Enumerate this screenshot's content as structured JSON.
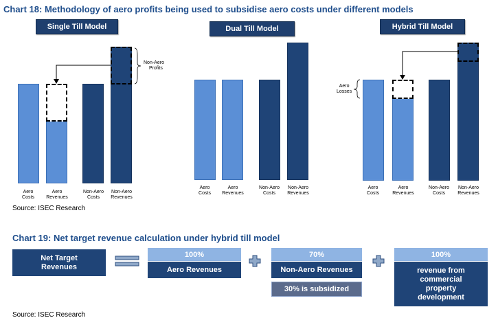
{
  "chart18": {
    "title": "Chart 18: Methodology of aero profits being used to subsidise aero costs under different models",
    "models": [
      {
        "name": "Single Till Model",
        "bars": [
          {
            "label_line1": "Aero",
            "label_line2": "Costs",
            "style": "light"
          },
          {
            "label_line1": "Aero",
            "label_line2": "Revenues",
            "style": "light"
          },
          {
            "label_line1": "Non-Aero",
            "label_line2": "Costs",
            "style": "dark"
          },
          {
            "label_line1": "Non-Aero",
            "label_line2": "Revenues",
            "style": "dark"
          }
        ],
        "annotation_line1": "Non-Aero",
        "annotation_line2": "Profits"
      },
      {
        "name": "Dual Till Model",
        "bars": [
          {
            "label_line1": "Aero",
            "label_line2": "Costs",
            "style": "light"
          },
          {
            "label_line1": "Aero",
            "label_line2": "Revenues",
            "style": "light"
          },
          {
            "label_line1": "Non-Aero",
            "label_line2": "Costs",
            "style": "dark"
          },
          {
            "label_line1": "Non-Aero",
            "label_line2": "Revenues",
            "style": "dark"
          }
        ]
      },
      {
        "name": "Hybrid Till Model",
        "bars": [
          {
            "label_line1": "Aero",
            "label_line2": "Costs",
            "style": "light"
          },
          {
            "label_line1": "Aero",
            "label_line2": "Revenues",
            "style": "light"
          },
          {
            "label_line1": "Non-Aero",
            "label_line2": "Costs",
            "style": "dark"
          },
          {
            "label_line1": "Non-Aero",
            "label_line2": "Revenues",
            "style": "dark"
          }
        ],
        "annotation_line1": "Aero",
        "annotation_line2": "Losses"
      }
    ],
    "source": "Source: ISEC Research"
  },
  "chart19": {
    "title": "Chart 19: Net target revenue calculation under hybrid till model",
    "net_target_line1": "Net Target",
    "net_target_line2": "Revenues",
    "aero": {
      "pct": "100%",
      "label": "Aero Revenues"
    },
    "non_aero": {
      "pct": "70%",
      "label": "Non-Aero Revenues",
      "note": "30% is subsidized"
    },
    "commercial": {
      "pct": "100%",
      "line1": "revenue from",
      "line2": "commercial",
      "line3": "property",
      "line4": "development"
    },
    "source": "Source: ISEC Research"
  },
  "colors": {
    "title": "#1f4e8c",
    "light_bar": "#5b8fd6",
    "dark_bar": "#1f4477",
    "light_box": "#8fb4e3",
    "gray_box": "#5b6b8c"
  }
}
